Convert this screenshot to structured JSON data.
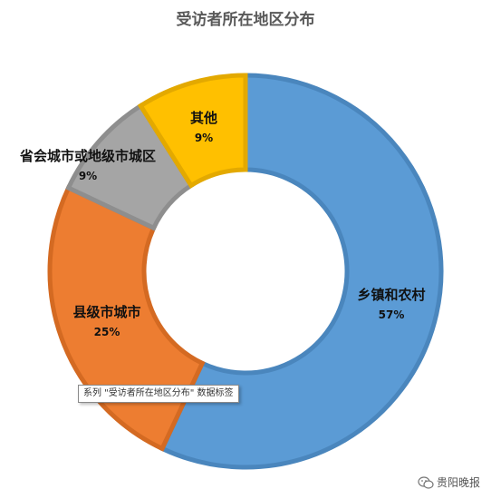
{
  "chart_data": {
    "type": "pie",
    "style": "donut",
    "title": "受访者所在地区分布",
    "slices": [
      {
        "label": "乡镇和农村",
        "value": 57,
        "value_label": "57%",
        "color": "#5b9bd5",
        "border": "#4a86bd"
      },
      {
        "label": "县级市城市",
        "value": 25,
        "value_label": "25%",
        "color": "#ed7d31",
        "border": "#d46a22"
      },
      {
        "label": "省会城市或地级市城区",
        "value": 9,
        "value_label": "9%",
        "color": "#a5a5a5",
        "border": "#8e8e8e"
      },
      {
        "label": "其他",
        "value": 9,
        "value_label": "9%",
        "color": "#ffc000",
        "border": "#e3a900"
      }
    ],
    "legend": "none"
  },
  "tooltip": {
    "text": "系列 \"受访者所在地区分布\" 数据标签"
  },
  "watermark": {
    "icon": "wechat-icon",
    "text": "贵阳晚报"
  }
}
